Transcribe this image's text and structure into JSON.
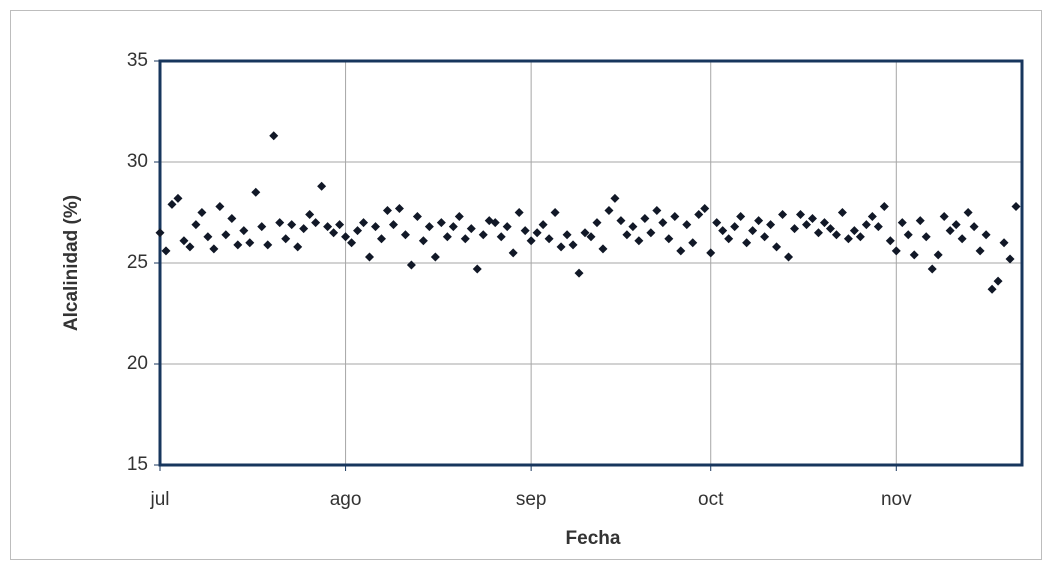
{
  "chart_data": {
    "type": "scatter",
    "x_label": "Fecha",
    "y_label": "Alcalinidad (%)",
    "xlim": [
      0,
      144
    ],
    "xticks": [
      {
        "value": 0,
        "label": "jul"
      },
      {
        "value": 31,
        "label": "ago"
      },
      {
        "value": 62,
        "label": "sep"
      },
      {
        "value": 92,
        "label": "oct"
      },
      {
        "value": 123,
        "label": "nov"
      }
    ],
    "ylim": [
      15,
      35
    ],
    "yticks": [
      15,
      20,
      25,
      30,
      35
    ],
    "grid": true,
    "color": "#111827",
    "x": [
      0,
      1,
      2,
      3,
      4,
      5,
      6,
      7,
      8,
      9,
      10,
      11,
      12,
      13,
      14,
      15,
      16,
      17,
      18,
      19,
      20,
      21,
      22,
      23,
      24,
      25,
      26,
      27,
      28,
      29,
      30,
      31,
      32,
      33,
      34,
      35,
      36,
      37,
      38,
      39,
      40,
      41,
      42,
      43,
      44,
      45,
      46,
      47,
      48,
      49,
      50,
      51,
      52,
      53,
      54,
      55,
      56,
      57,
      58,
      59,
      60,
      61,
      62,
      63,
      64,
      65,
      66,
      67,
      68,
      69,
      70,
      71,
      72,
      73,
      74,
      75,
      76,
      77,
      78,
      79,
      80,
      81,
      82,
      83,
      84,
      85,
      86,
      87,
      88,
      89,
      90,
      91,
      92,
      93,
      94,
      95,
      96,
      97,
      98,
      99,
      100,
      101,
      102,
      103,
      104,
      105,
      106,
      107,
      108,
      109,
      110,
      111,
      112,
      113,
      114,
      115,
      116,
      117,
      118,
      119,
      120,
      121,
      122,
      123,
      124,
      125,
      126,
      127,
      128,
      129,
      130,
      131,
      132,
      133,
      134,
      135,
      136,
      137,
      138,
      139,
      140,
      141,
      142,
      143
    ],
    "values": [
      26.5,
      25.6,
      27.9,
      28.2,
      26.1,
      25.8,
      26.9,
      27.5,
      26.3,
      25.7,
      27.8,
      26.4,
      27.2,
      25.9,
      26.6,
      26.0,
      28.5,
      26.8,
      25.9,
      31.3,
      27.0,
      26.2,
      26.9,
      25.8,
      26.7,
      27.4,
      27.0,
      28.8,
      26.8,
      26.5,
      26.9,
      26.3,
      26.0,
      26.6,
      27.0,
      25.3,
      26.8,
      26.2,
      27.6,
      26.9,
      27.7,
      26.4,
      24.9,
      27.3,
      26.1,
      26.8,
      25.3,
      27.0,
      26.3,
      26.8,
      27.3,
      26.2,
      26.7,
      24.7,
      26.4,
      27.1,
      27.0,
      26.3,
      26.8,
      25.5,
      27.5,
      26.6,
      26.1,
      26.5,
      26.9,
      26.2,
      27.5,
      25.8,
      26.4,
      25.9,
      24.5,
      26.5,
      26.3,
      27.0,
      25.7,
      27.6,
      28.2,
      27.1,
      26.4,
      26.8,
      26.1,
      27.2,
      26.5,
      27.6,
      27.0,
      26.2,
      27.3,
      25.6,
      26.9,
      26.0,
      27.4,
      27.7,
      25.5,
      27.0,
      26.6,
      26.2,
      26.8,
      27.3,
      26.0,
      26.6,
      27.1,
      26.3,
      26.9,
      25.8,
      27.4,
      25.3,
      26.7,
      27.4,
      26.9,
      27.2,
      26.5,
      27.0,
      26.7,
      26.4,
      27.5,
      26.2,
      26.6,
      26.3,
      26.9,
      27.3,
      26.8,
      27.8,
      26.1,
      25.6,
      27.0,
      26.4,
      25.4,
      27.1,
      26.3,
      24.7,
      25.4,
      27.3,
      26.6,
      26.9,
      26.2,
      27.5,
      26.8,
      25.6,
      26.4,
      23.7,
      24.1,
      26.0,
      25.2,
      27.8
    ]
  }
}
